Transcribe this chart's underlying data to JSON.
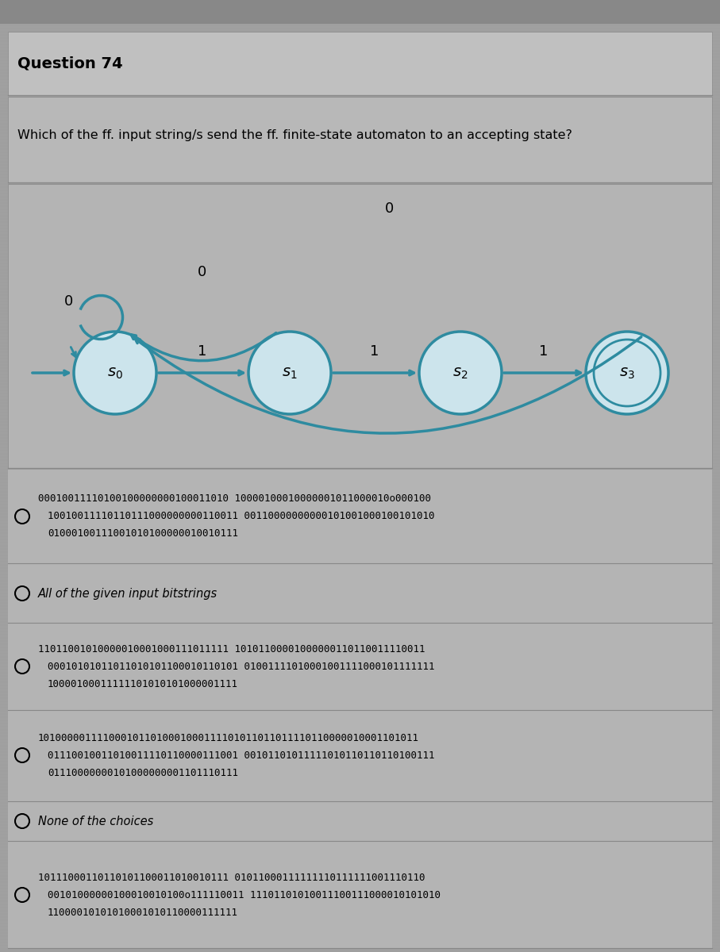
{
  "title": "Question 74",
  "question": "Which of the ff. input string/s send the ff. finite-state automaton to an accepting state?",
  "bg_color": "#a0a0a0",
  "header_color": "#b0b0b0",
  "divider_color": "#888888",
  "node_edge_color": "#2e8ba0",
  "node_face_color": "#cce4ec",
  "arrow_color": "#2e8ba0",
  "text_color": "#000000",
  "state_labels": [
    "s_{0}",
    "s_{1}",
    "s_{2}",
    "s_{3}"
  ],
  "options": [
    {
      "lines": [
        "00010011110100100000000100011010 10000100010000001011000010o000100",
        "10010011110110111000000000110011 00110000000000101001000100101010",
        "01000100111001010100000010010111"
      ],
      "special": false
    },
    {
      "lines": [
        "All of the given input bitstrings"
      ],
      "special": true
    },
    {
      "lines": [
        "11011001010000010001000111011111 10101100001000000110110011110011",
        "00010101011011010101100010110101 01001111010001001111000101111111",
        "10000100011111101010101000001111"
      ],
      "special": false
    },
    {
      "lines": [
        "1010000011110001011010001000111101011011011110110000010001101011",
        "01110010011010011110110000111001 00101101011111010110110110100111",
        "01110000000101000000001101110111"
      ],
      "special": false
    },
    {
      "lines": [
        "None of the choices"
      ],
      "special": true
    },
    {
      "lines": [
        "10111000110110101100011010010111 01011000111111110111111001110110",
        "00101000000100010010100o111110011 11101101010011100111000010101010",
        "11000010101010001010110000111111"
      ],
      "special": false
    }
  ]
}
